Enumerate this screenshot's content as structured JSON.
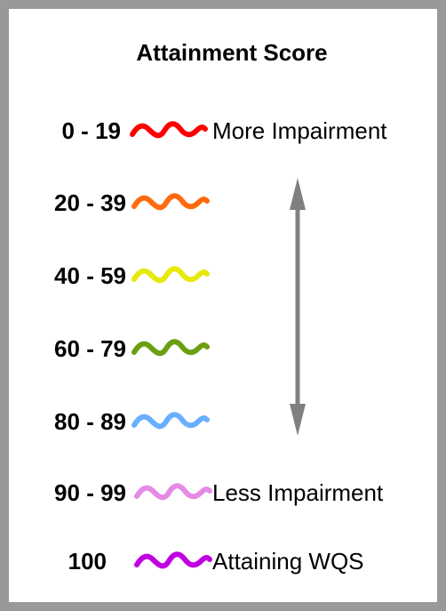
{
  "legend": {
    "title": "Attainment Score",
    "items": [
      {
        "range": "0 - 19",
        "color": "#ff0000",
        "label": "More Impairment"
      },
      {
        "range": "20 - 39",
        "color": "#ff6a0e",
        "label": ""
      },
      {
        "range": "40 - 59",
        "color": "#e8e80c",
        "label": ""
      },
      {
        "range": "60 - 79",
        "color": "#6aa010",
        "label": ""
      },
      {
        "range": "80 - 89",
        "color": "#6aafff",
        "label": ""
      },
      {
        "range": "90 - 99",
        "color": "#e58ae5",
        "label": "Less Impairment"
      },
      {
        "range": "100",
        "color": "#c000e0",
        "label": "Attaining WQS"
      }
    ],
    "arrow_color": "#808080",
    "arrow_icon": "double-headed-vertical-arrow-icon"
  }
}
